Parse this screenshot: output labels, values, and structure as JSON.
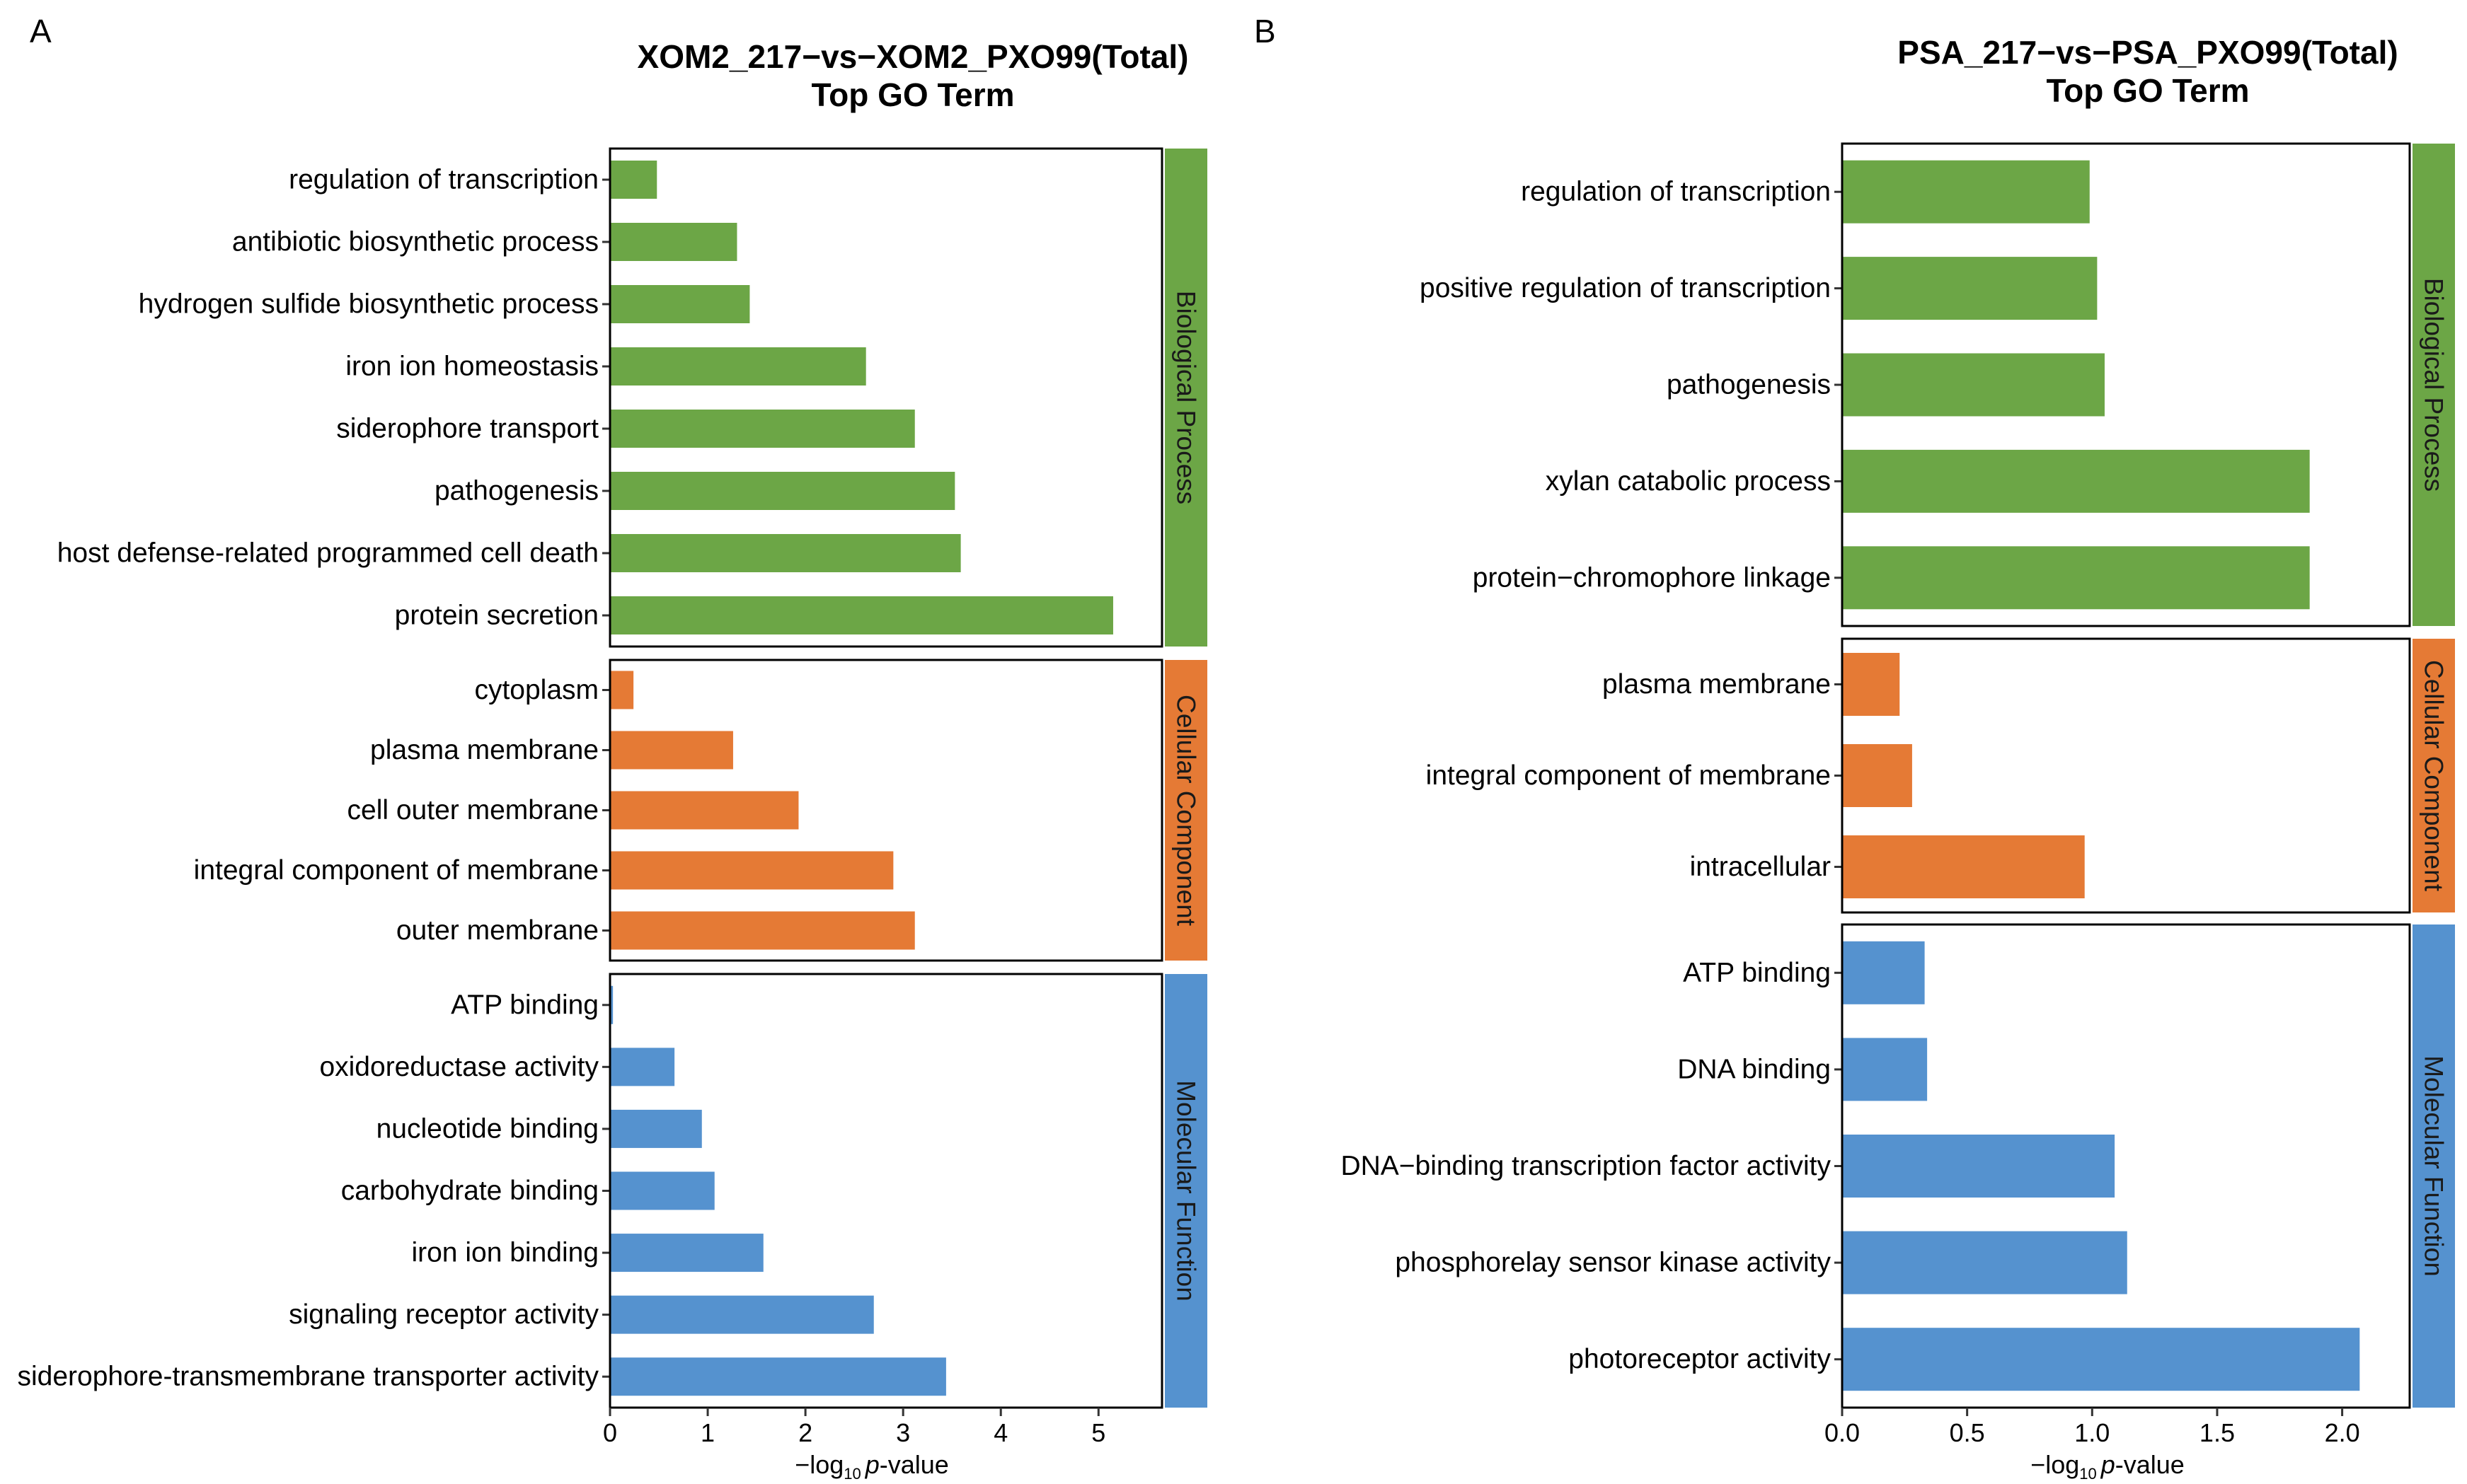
{
  "colors": {
    "biological_process": "#6ca646",
    "cellular_component": "#e57a35",
    "molecular_function": "#5592cf"
  },
  "chart_data": [
    {
      "type": "bar",
      "orientation": "horizontal",
      "panel": "A",
      "title": "XOM2_217−vs−XOM2_PXO99(Total)",
      "subtitle": "Top GO Term",
      "xlabel_prefix": "−log",
      "xlabel_sub": "10",
      "xlabel_italic": "p",
      "xlabel_suffix": "-value",
      "xlim": [
        0,
        5.65
      ],
      "xticks": [
        "0",
        "1",
        "2",
        "3",
        "4",
        "5"
      ],
      "xtick_values": [
        0,
        1,
        2,
        3,
        4,
        5
      ],
      "groups": [
        {
          "name": "Biological Process",
          "color_key": "biological_process",
          "categories": [
            "regulation of transcription",
            "antibiotic biosynthetic process",
            "hydrogen sulfide biosynthetic process",
            "iron ion homeostasis",
            "siderophore transport",
            "pathogenesis",
            "host defense-related programmed cell death",
            "protein secretion"
          ],
          "values": [
            0.48,
            1.3,
            1.43,
            2.62,
            3.12,
            3.53,
            3.59,
            5.15
          ]
        },
        {
          "name": "Cellular Component",
          "color_key": "cellular_component",
          "categories": [
            "cytoplasm",
            "plasma membrane",
            "cell outer membrane",
            "integral component of membrane",
            "outer membrane"
          ],
          "values": [
            0.24,
            1.26,
            1.93,
            2.9,
            3.12
          ]
        },
        {
          "name": "Molecular Function",
          "color_key": "molecular_function",
          "categories": [
            "ATP binding",
            "oxidoreductase activity",
            "nucleotide binding",
            "carbohydrate binding",
            "iron ion binding",
            "signaling receptor activity",
            "siderophore-transmembrane transporter activity"
          ],
          "values": [
            0.03,
            0.66,
            0.94,
            1.07,
            1.57,
            2.7,
            3.44
          ]
        }
      ]
    },
    {
      "type": "bar",
      "orientation": "horizontal",
      "panel": "B",
      "title": "PSA_217−vs−PSA_PXO99(Total)",
      "subtitle": "Top GO Term",
      "xlabel_prefix": "−log",
      "xlabel_sub": "10",
      "xlabel_italic": "p",
      "xlabel_suffix": "-value",
      "xlim": [
        0,
        2.27
      ],
      "xticks": [
        "0.0",
        "0.5",
        "1.0",
        "1.5",
        "2.0"
      ],
      "xtick_values": [
        0,
        0.5,
        1.0,
        1.5,
        2.0
      ],
      "groups": [
        {
          "name": "Biological Process",
          "color_key": "biological_process",
          "categories": [
            "regulation of transcription",
            "positive regulation of transcription",
            "pathogenesis",
            "xylan catabolic process",
            "protein−chromophore linkage"
          ],
          "values": [
            0.99,
            1.02,
            1.05,
            1.87,
            1.87
          ]
        },
        {
          "name": "Cellular Component",
          "color_key": "cellular_component",
          "categories": [
            "plasma membrane",
            "integral component of membrane",
            "intracellular"
          ],
          "values": [
            0.23,
            0.28,
            0.97
          ]
        },
        {
          "name": "Molecular Function",
          "color_key": "molecular_function",
          "categories": [
            "ATP binding",
            "DNA binding",
            "DNA−binding transcription factor activity",
            "phosphorelay sensor kinase activity",
            "photoreceptor activity"
          ],
          "values": [
            0.33,
            0.34,
            1.09,
            1.14,
            2.07
          ]
        }
      ]
    }
  ]
}
